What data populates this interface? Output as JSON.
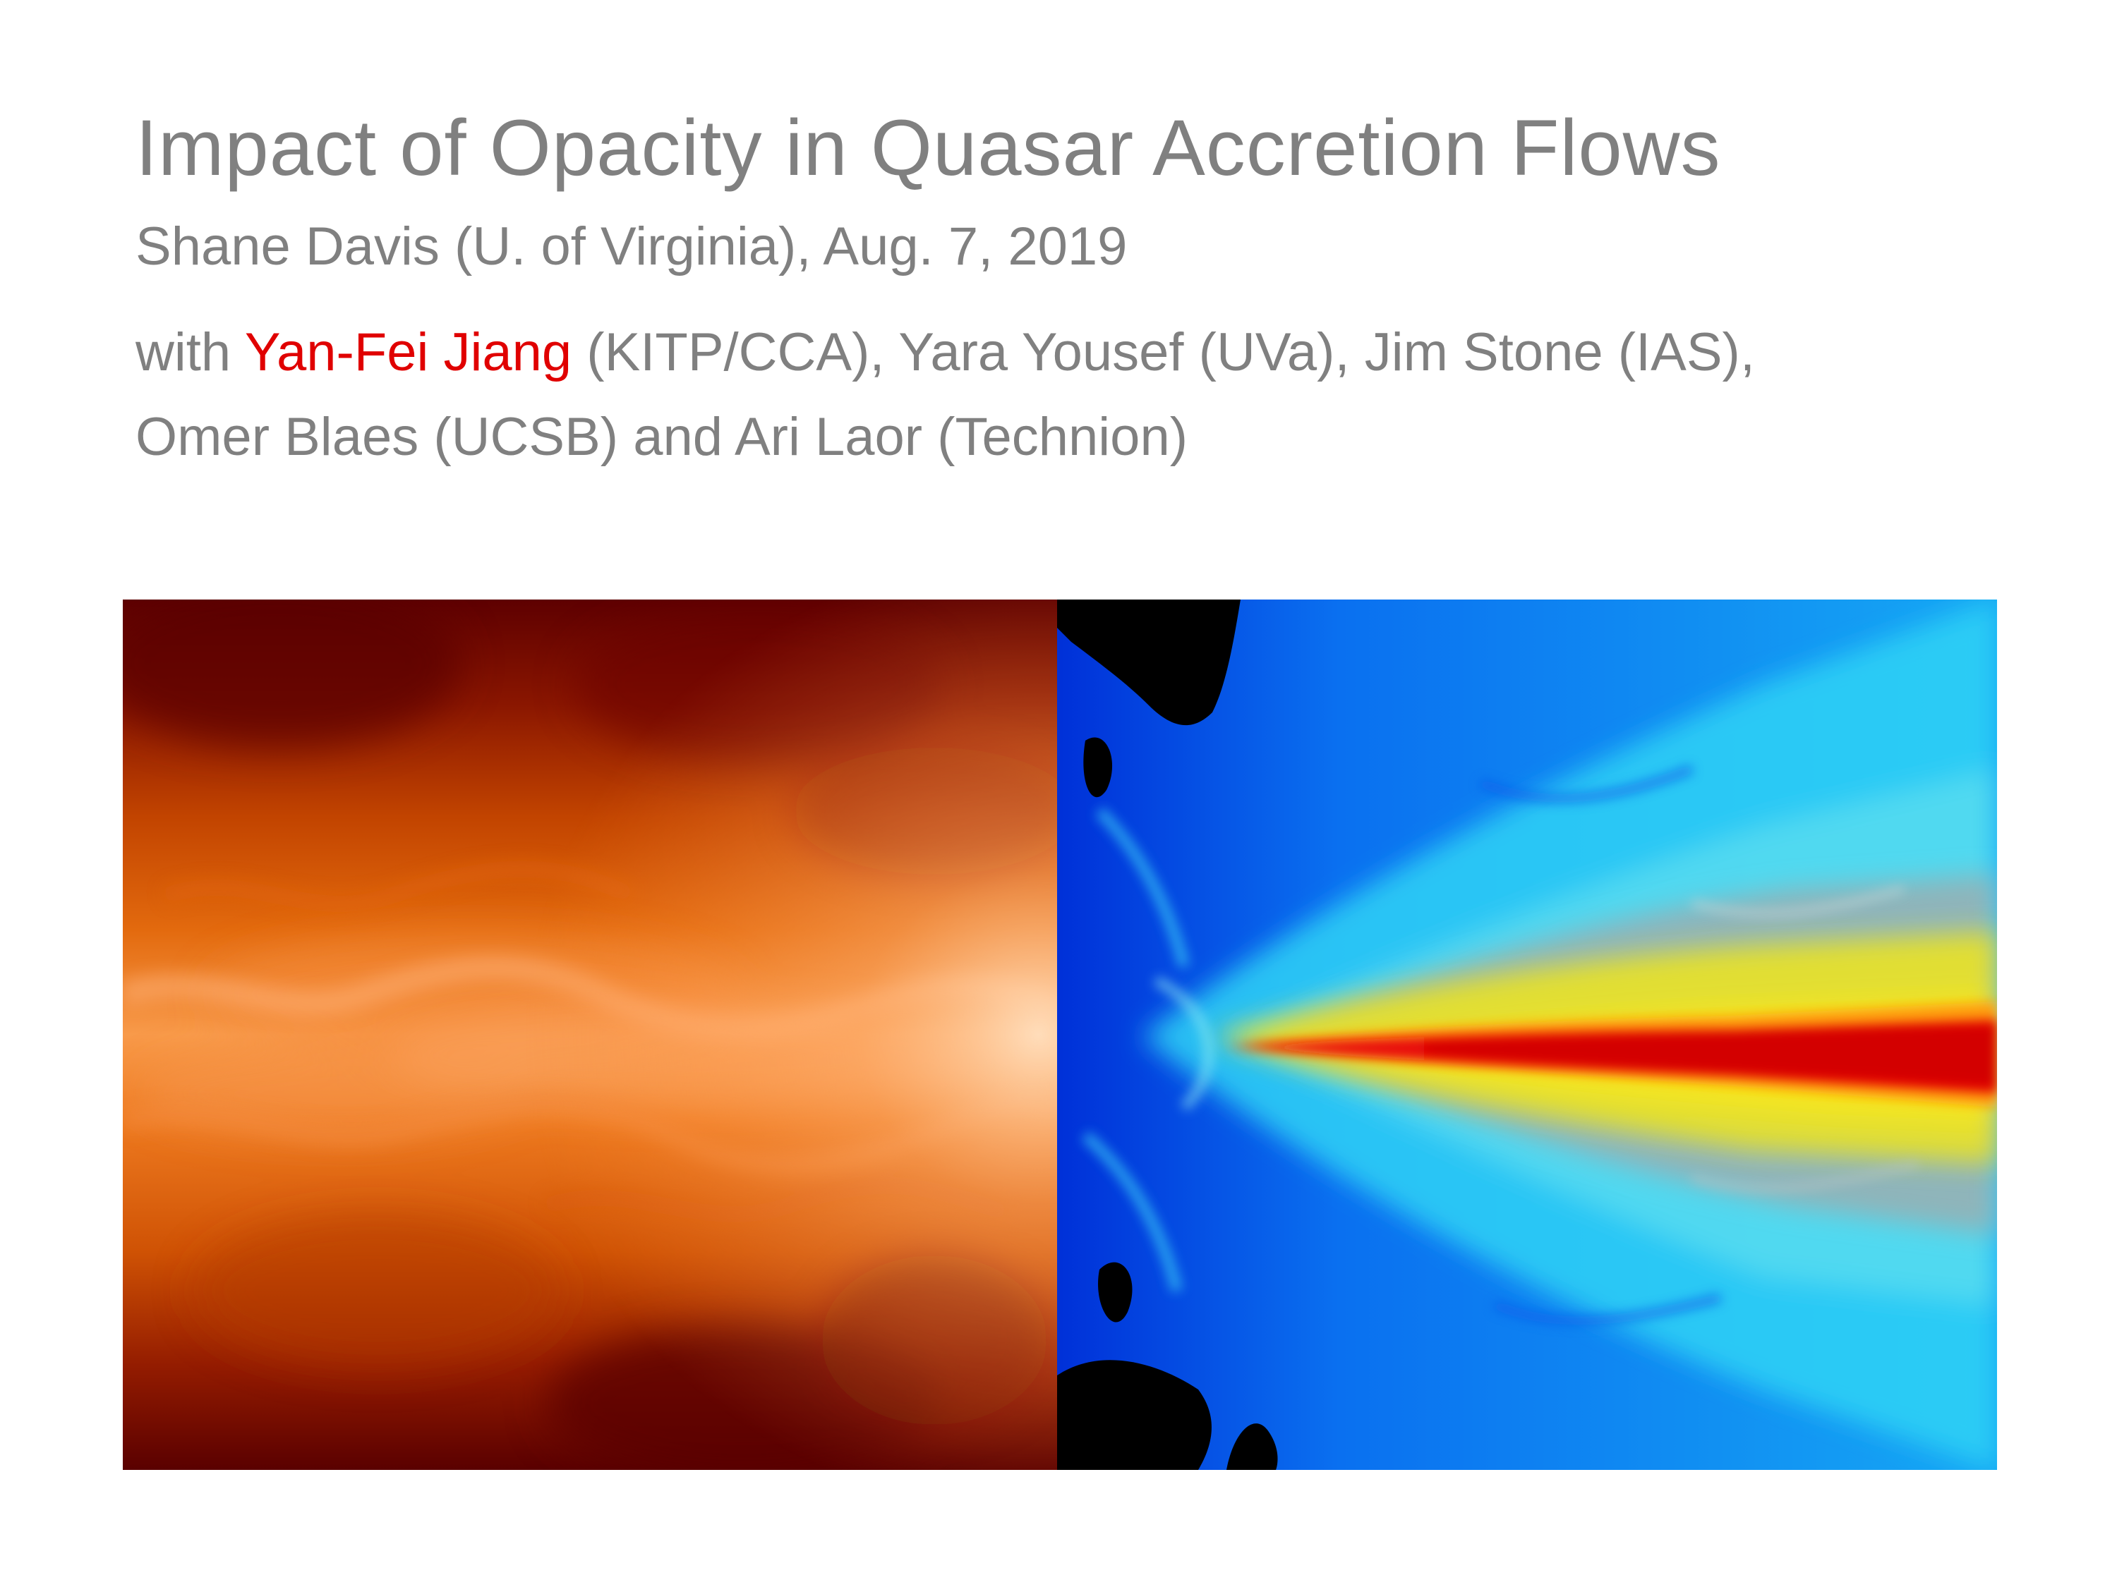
{
  "slide": {
    "title": "Impact of Opacity in Quasar Accretion Flows",
    "subtitle": "Shane Davis (U. of Virginia), Aug. 7, 2019",
    "authors": {
      "line1_prefix": "with ",
      "highlighted_name": "Yan-Fei Jiang",
      "line1_suffix": " (KITP/CCA), Yara Yousef (UVa), Jim Stone (IAS),",
      "line2": "Omer Blaes (UCSB) and Ari Laor (Technion)"
    }
  },
  "colors": {
    "text_gray": "#808080",
    "highlight_red": "#e00000",
    "background": "#ffffff"
  },
  "figure": {
    "left_panel": "orange-hot-colormap-simulation",
    "right_panel": "jet-colormap-simulation"
  }
}
